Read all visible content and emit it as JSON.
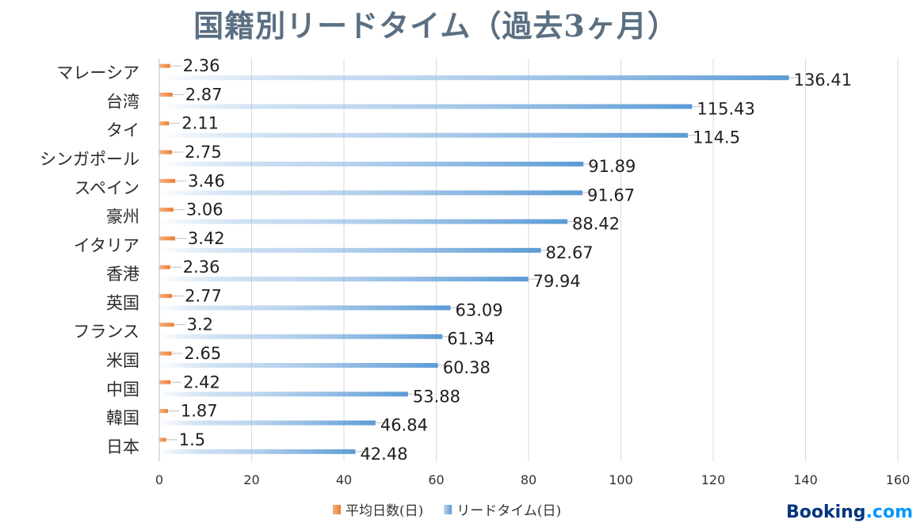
{
  "chart_data": {
    "type": "bar",
    "orientation": "horizontal",
    "title": "国籍別リードタイム（過去3ヶ月）",
    "categories": [
      "マレーシア",
      "台湾",
      "タイ",
      "シンガポール",
      "スペイン",
      "豪州",
      "イタリア",
      "香港",
      "英国",
      "フランス",
      "米国",
      "中国",
      "韓国",
      "日本"
    ],
    "series": [
      {
        "name": "平均日数(日)",
        "color": "#ed7d31",
        "values": [
          2.36,
          2.87,
          2.11,
          2.75,
          3.46,
          3.06,
          3.42,
          2.36,
          2.77,
          3.2,
          2.65,
          2.42,
          1.87,
          1.5
        ],
        "labels": [
          "2.36",
          "2.87",
          "2.11",
          "2.75",
          "3.46",
          "3.06",
          "3.42",
          "2.36",
          "2.77",
          "3.2",
          "2.65",
          "2.42",
          "1.87",
          "1.5"
        ]
      },
      {
        "name": "リードタイム(日)",
        "color": "#5b9bd5",
        "values": [
          136.41,
          115.43,
          114.5,
          91.89,
          91.67,
          88.42,
          82.67,
          79.94,
          63.09,
          61.34,
          60.38,
          53.88,
          46.84,
          42.48
        ],
        "labels": [
          "136.41",
          "115.43",
          "114.5",
          "91.89",
          "91.67",
          "88.42",
          "82.67",
          "79.94",
          "63.09",
          "61.34",
          "60.38",
          "53.88",
          "46.84",
          "42.48"
        ]
      }
    ],
    "xlim": [
      0,
      160
    ],
    "xticks": [
      "0",
      "20",
      "40",
      "60",
      "80",
      "100",
      "120",
      "140",
      "160"
    ],
    "grid": true,
    "legend_position": "bottom"
  },
  "brand": {
    "name": "Booking",
    "suffix": ".com"
  }
}
